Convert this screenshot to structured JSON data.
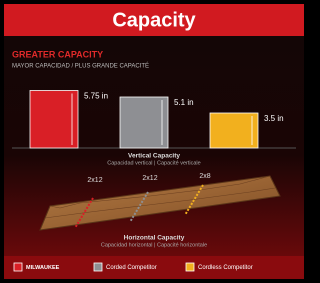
{
  "title": "Capacity",
  "chart_data": {
    "type": "bar",
    "title": "GREATER CAPACITY",
    "subtitle": "MAYOR CAPACIDAD / PLUS GRANDE CAPACITÉ",
    "categories": [
      "MILWAUKEE",
      "Corded Competitor",
      "Cordless Competitor"
    ],
    "values": [
      5.75,
      5.1,
      3.5
    ],
    "value_labels": [
      "5.75 in",
      "5.1 in",
      "3.5 in"
    ],
    "colors": [
      "#d91f26",
      "#8e8f93",
      "#f2b01e"
    ],
    "x_label": "Vertical Capacity",
    "x_sublabel": "Capacidad vertical | Capacité verticale"
  },
  "horizontal": {
    "title": "Horizontal Capacity",
    "subtitle": "Capacidad horizontal | Capacité horizontale",
    "boards": [
      "2x12",
      "2x12",
      "2x8"
    ]
  }
}
